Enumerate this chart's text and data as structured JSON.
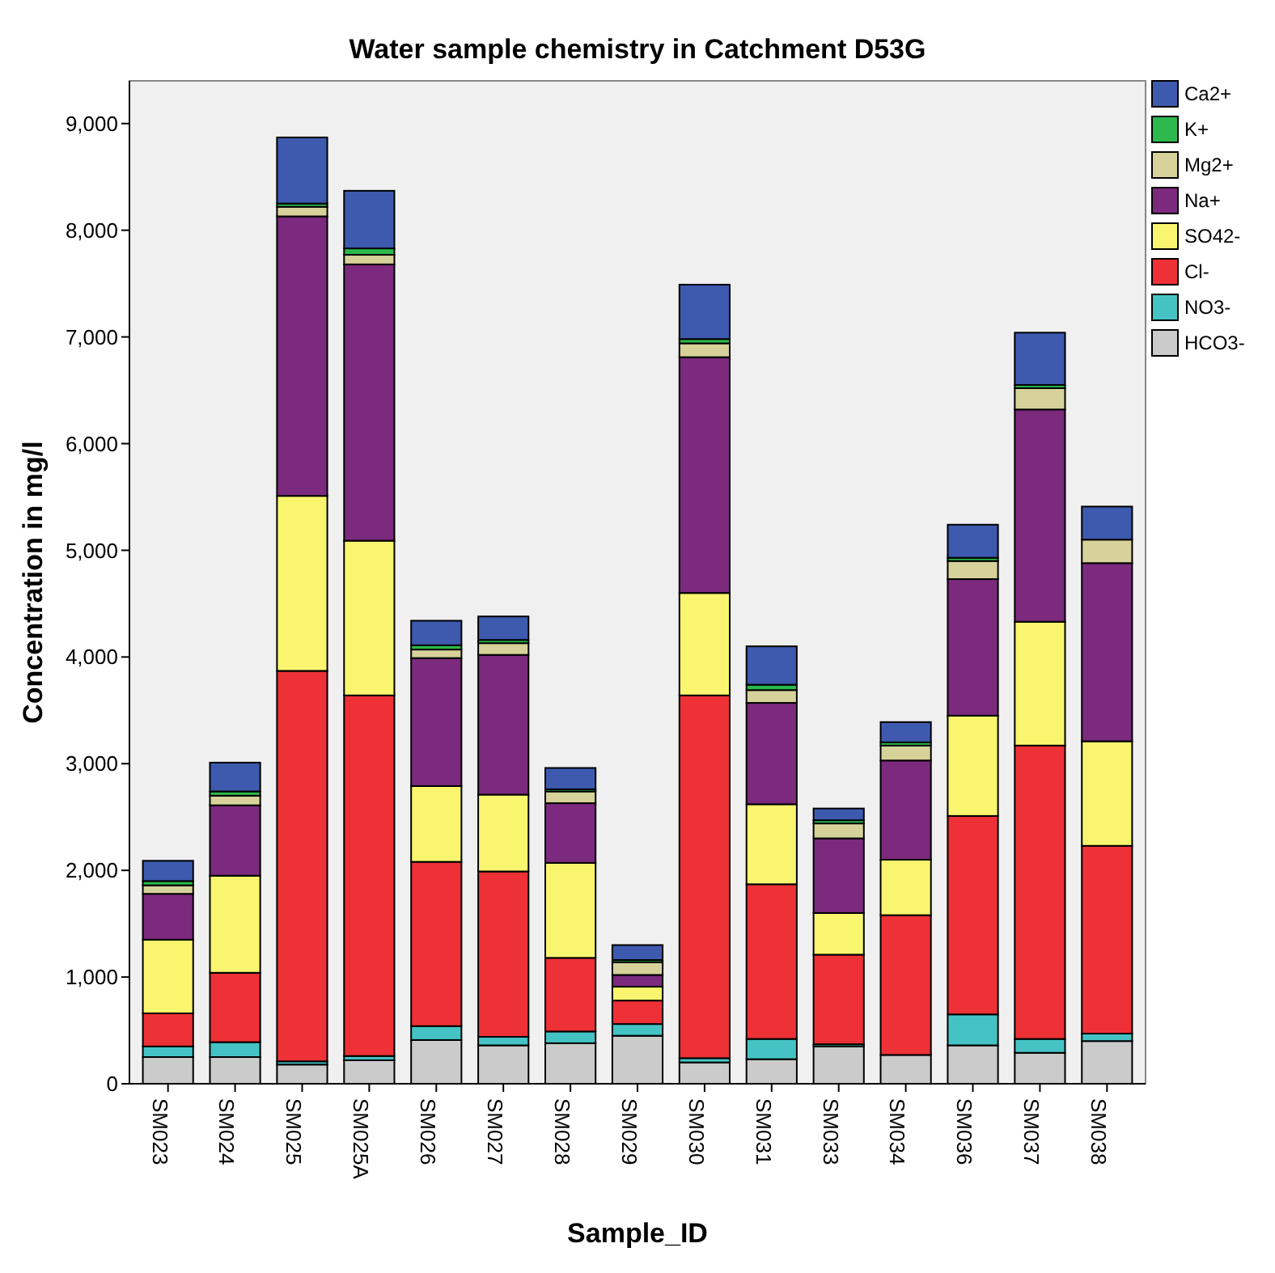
{
  "chart_data": {
    "type": "bar",
    "title": "Water sample chemistry in Catchment D53G",
    "xlabel": "Sample_ID",
    "ylabel": "Concentration in mg/l",
    "stacked": true,
    "legend": "right",
    "grid": false,
    "categories": [
      "SM023",
      "SM024",
      "SM025",
      "SM025A",
      "SM026",
      "SM027",
      "SM028",
      "SM029",
      "SM030",
      "SM031",
      "SM033",
      "SM034",
      "SM036",
      "SM037",
      "SM038"
    ],
    "ylim": [
      0,
      9400
    ],
    "yticks": [
      0,
      {
        "value": 1000,
        "label": "1,000"
      },
      {
        "value": 2000,
        "label": "2,000"
      },
      {
        "value": 3000,
        "label": "3,000"
      },
      {
        "value": 4000,
        "label": "4,000"
      },
      {
        "value": 5000,
        "label": "5,000"
      },
      {
        "value": 6000,
        "label": "6,000"
      },
      {
        "value": 7000,
        "label": "7,000"
      },
      {
        "value": 8000,
        "label": "8,000"
      },
      {
        "value": 9000,
        "label": "9,000"
      }
    ],
    "series": [
      {
        "name": "HCO3-",
        "color": "#cbcbcb",
        "values": [
          250,
          250,
          180,
          220,
          410,
          360,
          380,
          450,
          200,
          230,
          350,
          270,
          360,
          290,
          400
        ]
      },
      {
        "name": "NO3-",
        "color": "#45c3c4",
        "values": [
          100,
          140,
          30,
          40,
          130,
          80,
          110,
          110,
          40,
          190,
          20,
          null,
          290,
          130,
          70
        ]
      },
      {
        "name": "Cl-",
        "color": "#ee3136",
        "values": [
          310,
          650,
          3660,
          3380,
          1540,
          1550,
          690,
          220,
          3400,
          1450,
          840,
          1310,
          1860,
          2750,
          1760
        ]
      },
      {
        "name": "SO42-",
        "color": "#f9f56e",
        "values": [
          690,
          910,
          1640,
          1450,
          710,
          720,
          890,
          130,
          960,
          750,
          390,
          520,
          940,
          1160,
          980
        ]
      },
      {
        "name": "Na+",
        "color": "#7b2a7e",
        "values": [
          430,
          660,
          2620,
          2590,
          1200,
          1310,
          560,
          110,
          2210,
          950,
          700,
          930,
          1280,
          1990,
          1670
        ]
      },
      {
        "name": "Mg2+",
        "color": "#d6d29a",
        "values": [
          80,
          90,
          90,
          90,
          80,
          110,
          110,
          120,
          130,
          120,
          140,
          140,
          170,
          200,
          220
        ]
      },
      {
        "name": "K+",
        "color": "#2db94d",
        "values": [
          40,
          40,
          30,
          60,
          40,
          30,
          20,
          20,
          40,
          50,
          30,
          30,
          30,
          30,
          null
        ]
      },
      {
        "name": "Ca2+",
        "color": "#3d5aae",
        "values": [
          190,
          270,
          620,
          540,
          230,
          220,
          200,
          140,
          510,
          360,
          110,
          190,
          310,
          490,
          310
        ]
      }
    ]
  }
}
